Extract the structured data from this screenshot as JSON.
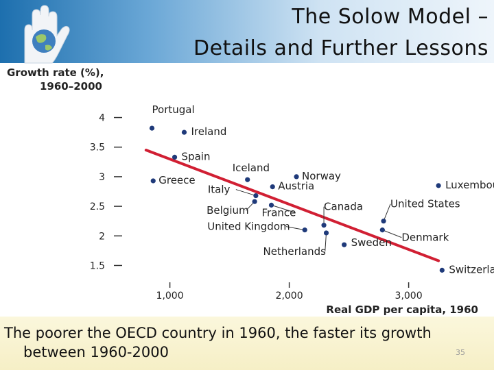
{
  "header": {
    "title_line1": "The Solow Model –",
    "title_line2": "Details and Further Lessons"
  },
  "chart_data": {
    "type": "scatter",
    "ylabel_line1": "Growth rate (%),",
    "ylabel_line2": "1960–2000",
    "xlabel": "Real GDP per capita, 1960",
    "xticks": [
      {
        "value": 1000,
        "label": "1,000"
      },
      {
        "value": 2000,
        "label": "2,000"
      },
      {
        "value": 3000,
        "label": "3,000"
      }
    ],
    "yticks": [
      {
        "value": 4,
        "label": "4"
      },
      {
        "value": 3.5,
        "label": "3.5"
      },
      {
        "value": 3,
        "label": "3"
      },
      {
        "value": 2.5,
        "label": "2.5"
      },
      {
        "value": 2,
        "label": "2"
      },
      {
        "value": 1.5,
        "label": "1.5"
      }
    ],
    "xlim": [
      600,
      3600
    ],
    "ylim": [
      1.1,
      4.4
    ],
    "points": [
      {
        "name": "Portugal",
        "x": 850,
        "y": 3.82
      },
      {
        "name": "Ireland",
        "x": 1120,
        "y": 3.75
      },
      {
        "name": "Spain",
        "x": 1040,
        "y": 3.33
      },
      {
        "name": "Greece",
        "x": 860,
        "y": 2.93
      },
      {
        "name": "Iceland",
        "x": 1650,
        "y": 2.95
      },
      {
        "name": "Norway",
        "x": 2060,
        "y": 3.0
      },
      {
        "name": "Austria",
        "x": 1860,
        "y": 2.83
      },
      {
        "name": "Italy",
        "x": 1720,
        "y": 2.68
      },
      {
        "name": "Belgium",
        "x": 1710,
        "y": 2.58
      },
      {
        "name": "France",
        "x": 1850,
        "y": 2.52
      },
      {
        "name": "United Kingdom",
        "x": 2130,
        "y": 2.1
      },
      {
        "name": "Canada",
        "x": 2290,
        "y": 2.18
      },
      {
        "name": "Netherlands",
        "x": 2310,
        "y": 2.05
      },
      {
        "name": "Sweden",
        "x": 2460,
        "y": 1.85
      },
      {
        "name": "United States",
        "x": 2790,
        "y": 2.25
      },
      {
        "name": "Denmark",
        "x": 2780,
        "y": 2.1
      },
      {
        "name": "Luxembourg",
        "x": 3250,
        "y": 2.85
      },
      {
        "name": "Switzerland",
        "x": 3280,
        "y": 1.42
      }
    ],
    "trend": {
      "x": [
        800,
        3250
      ],
      "y": [
        3.45,
        1.58
      ]
    },
    "colors": {
      "points": "#1f3a7a",
      "trend": "#d11f33",
      "axis": "#333333"
    }
  },
  "footer": {
    "caption_line1": "The poorer the OECD country in 1960, the faster its growth",
    "caption_line2": "between 1960-2000",
    "page_number": "35"
  }
}
